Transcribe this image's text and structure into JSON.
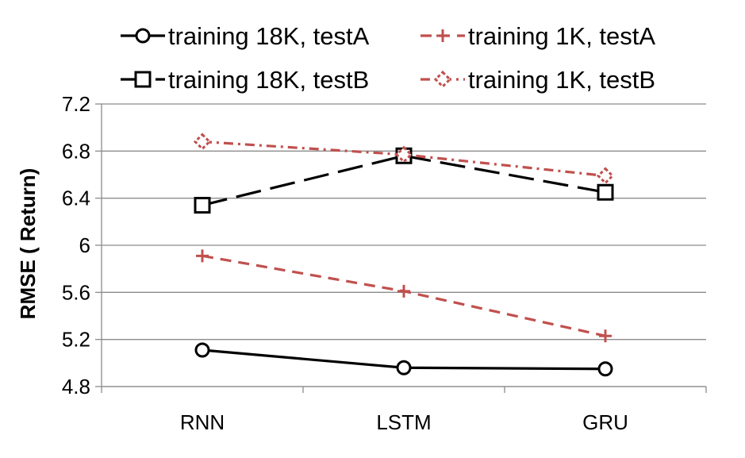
{
  "chart_data": {
    "type": "line",
    "title": "",
    "xlabel": "",
    "ylabel": "RMSE ( Return)",
    "categories": [
      "RNN",
      "LSTM",
      "GRU"
    ],
    "ylim": [
      4.8,
      7.2
    ],
    "yticks": [
      4.8,
      5.2,
      5.6,
      6,
      6.4,
      6.8,
      7.2
    ],
    "ytick_labels": [
      "4.8",
      "5.2",
      "5.6",
      "6",
      "6.4",
      "6.8",
      "7.2"
    ],
    "grid": true,
    "legend_position": "top",
    "series": [
      {
        "name": "training 18K, testA",
        "values": [
          5.11,
          4.96,
          4.95
        ],
        "color": "#000000",
        "style": "solid",
        "marker": "circle"
      },
      {
        "name": "training 1K, testA",
        "values": [
          5.91,
          5.61,
          5.23
        ],
        "color": "#c0504d",
        "style": "dashed",
        "marker": "plus"
      },
      {
        "name": "training 18K, testB",
        "values": [
          6.34,
          6.76,
          6.45
        ],
        "color": "#000000",
        "style": "longdash",
        "marker": "square"
      },
      {
        "name": "training 1K, testB",
        "values": [
          6.88,
          6.77,
          6.59
        ],
        "color": "#c0504d",
        "style": "dashdot",
        "marker": "diamond"
      }
    ]
  }
}
